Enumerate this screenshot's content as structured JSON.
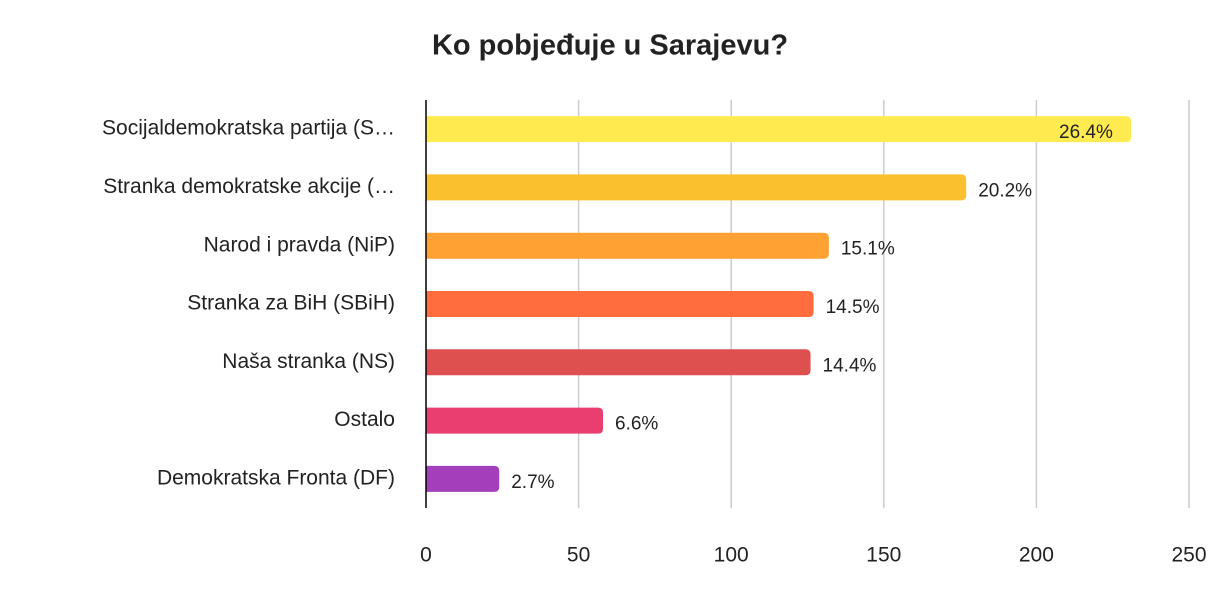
{
  "chart_data": {
    "type": "hbar",
    "title": "Ko pobjeđuje u Sarajevu?",
    "categories": [
      "Socijaldemokratska partija (S…",
      "Stranka demokratske akcije (…",
      "Narod i pravda (NiP)",
      "Stranka za BiH (SBiH)",
      "Naša stranka (NS)",
      "Ostalo",
      "Demokratska Fronta (DF)"
    ],
    "values": [
      231,
      177,
      132,
      127,
      126,
      58,
      24
    ],
    "value_labels": [
      "26.4%",
      "20.2%",
      "15.1%",
      "14.5%",
      "14.4%",
      "6.6%",
      "2.7%"
    ],
    "colors": [
      "#ffeb4f",
      "#fbc02d",
      "#ffa233",
      "#ff6d3f",
      "#de4f4f",
      "#ea3e71",
      "#a33fba"
    ],
    "xlim": [
      0,
      250
    ],
    "xticks": [
      0,
      50,
      100,
      150,
      200,
      250
    ],
    "grid": true
  }
}
